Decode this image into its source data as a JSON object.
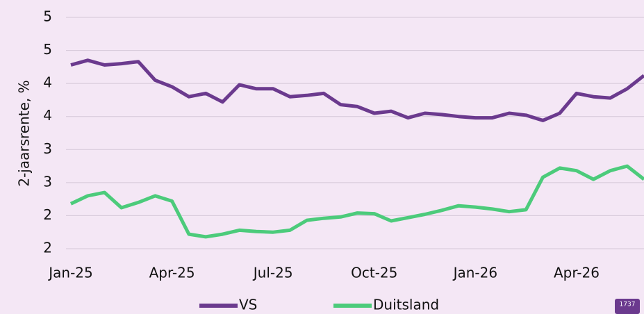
{
  "chart_data": {
    "type": "line",
    "y_label": "2-jaarsrente, %",
    "badge": "1737",
    "categories": [
      "Jan-25",
      null,
      null,
      null,
      null,
      null,
      "Apr-25",
      null,
      null,
      null,
      null,
      null,
      "Jul-25",
      null,
      null,
      null,
      null,
      null,
      "Oct-25",
      null,
      null,
      null,
      null,
      null,
      "Jan-26",
      null,
      null,
      null,
      null,
      null,
      "Apr-26",
      null,
      null,
      null,
      null
    ],
    "series": [
      {
        "name": "VS",
        "color": "#6b3a8e",
        "values": [
          4.28,
          4.35,
          4.28,
          4.3,
          4.33,
          4.05,
          3.95,
          3.8,
          3.85,
          3.72,
          3.98,
          3.92,
          3.92,
          3.8,
          3.82,
          3.85,
          3.68,
          3.65,
          3.55,
          3.58,
          3.48,
          3.55,
          3.53,
          3.5,
          3.48,
          3.48,
          3.55,
          3.52,
          3.44,
          3.55,
          3.85,
          3.8,
          3.78,
          3.92,
          4.12
        ]
      },
      {
        "name": "Duitsland",
        "color": "#4ccb7b",
        "values": [
          2.18,
          2.3,
          2.35,
          2.12,
          2.2,
          2.3,
          2.22,
          1.72,
          1.68,
          1.72,
          1.78,
          1.76,
          1.75,
          1.78,
          1.93,
          1.96,
          1.98,
          2.04,
          2.03,
          1.92,
          1.97,
          2.02,
          2.08,
          2.15,
          2.13,
          2.1,
          2.06,
          2.09,
          2.58,
          2.72,
          2.68,
          2.55,
          2.68,
          2.75,
          2.55
        ]
      }
    ],
    "ylim": [
      1.5,
      5.0
    ],
    "yticks": [
      {
        "value": 5.0,
        "label": "5"
      },
      {
        "value": 4.5,
        "label": "5"
      },
      {
        "value": 4.0,
        "label": "4"
      },
      {
        "value": 3.5,
        "label": "4"
      },
      {
        "value": 3.0,
        "label": "3"
      },
      {
        "value": 2.5,
        "label": "3"
      },
      {
        "value": 2.0,
        "label": "2"
      },
      {
        "value": 1.5,
        "label": "2"
      }
    ],
    "grid": true
  }
}
